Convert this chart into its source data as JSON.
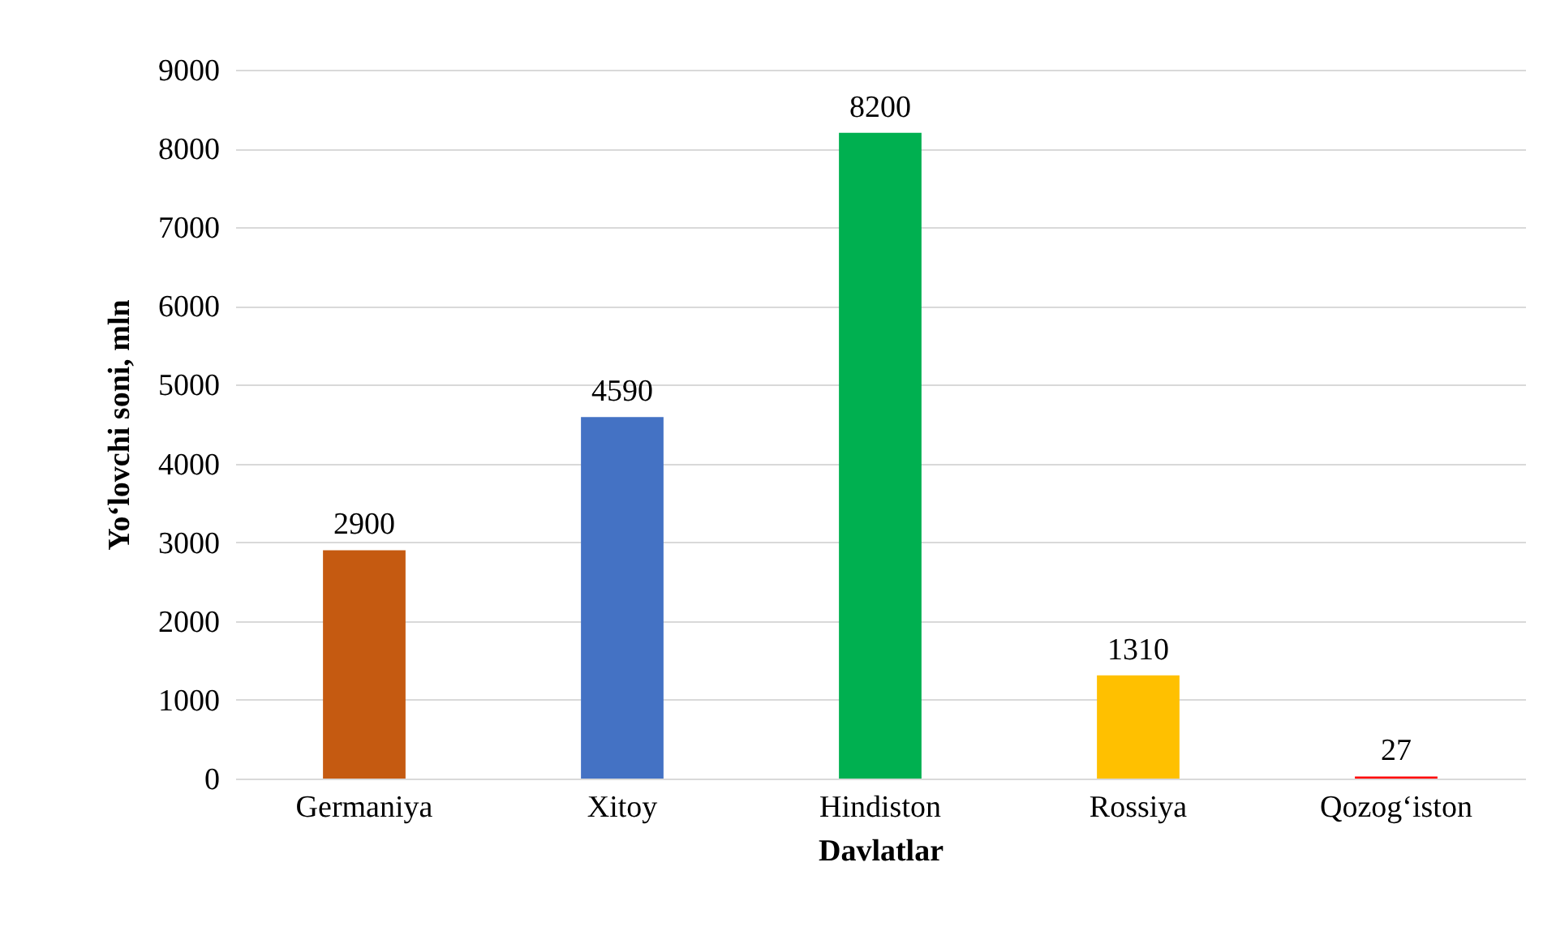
{
  "chart_data": {
    "type": "bar",
    "xlabel": "Davlatlar",
    "ylabel": "Yo‘lovchi soni, mln",
    "categories": [
      "Germaniya",
      "Xitoy",
      "Hindiston",
      "Rossiya",
      "Qozog‘iston"
    ],
    "values": [
      2900,
      4590,
      8200,
      1310,
      27
    ],
    "colors": [
      "#c55a11",
      "#4472c4",
      "#00b050",
      "#ffc000",
      "#ff0000"
    ],
    "ylim": [
      0,
      9000
    ],
    "yticks": [
      0,
      1000,
      2000,
      3000,
      4000,
      5000,
      6000,
      7000,
      8000,
      9000
    ],
    "grid": true,
    "data_labels": true
  }
}
